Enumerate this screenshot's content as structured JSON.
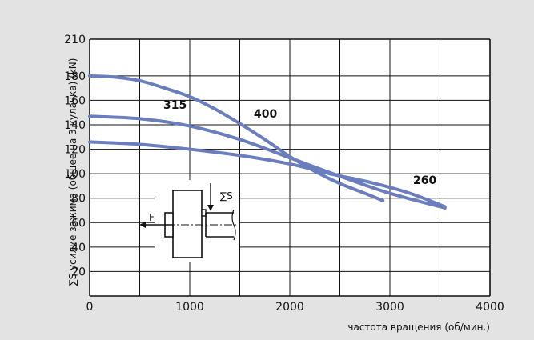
{
  "chart_data": {
    "type": "line",
    "xlabel": "частота вращения (об/мин.)",
    "ylabel": "∑S усилие зажима (общее на 3 кулачка) (kN)",
    "xlim": [
      0,
      4000
    ],
    "ylim": [
      0,
      210
    ],
    "xticks": [
      "0",
      "1000",
      "2000",
      "3000",
      "4000"
    ],
    "yticks": [
      "20",
      "40",
      "60",
      "80",
      "100",
      "120",
      "140",
      "160",
      "180",
      "210"
    ],
    "grid": true,
    "series": [
      {
        "name": "315",
        "x": [
          0,
          250,
          500,
          750,
          1000,
          1250,
          1500,
          1750,
          2000,
          2250,
          2500,
          2750,
          2930
        ],
        "y": [
          180,
          179,
          176,
          170,
          163,
          153,
          141,
          128,
          114,
          102,
          92,
          84,
          78
        ]
      },
      {
        "name": "400",
        "x": [
          0,
          500,
          1000,
          1500,
          2000,
          2500,
          3000,
          3550
        ],
        "y": [
          147,
          145,
          139,
          128,
          113,
          98,
          84,
          72
        ]
      },
      {
        "name": "260",
        "x": [
          0,
          500,
          1000,
          1500,
          2000,
          2400,
          2800,
          3200,
          3550
        ],
        "y": [
          126,
          124,
          120,
          115,
          108,
          100,
          93,
          84,
          73
        ]
      }
    ],
    "curve_labels": [
      "315",
      "400",
      "260"
    ],
    "diagram_labels": {
      "force": "F",
      "clamp": "∑S"
    },
    "colors": {
      "curve": "#6a7dbd",
      "grid": "#111111",
      "plot_bg": "#ffffff",
      "page_bg": "#e3e3e3"
    }
  }
}
